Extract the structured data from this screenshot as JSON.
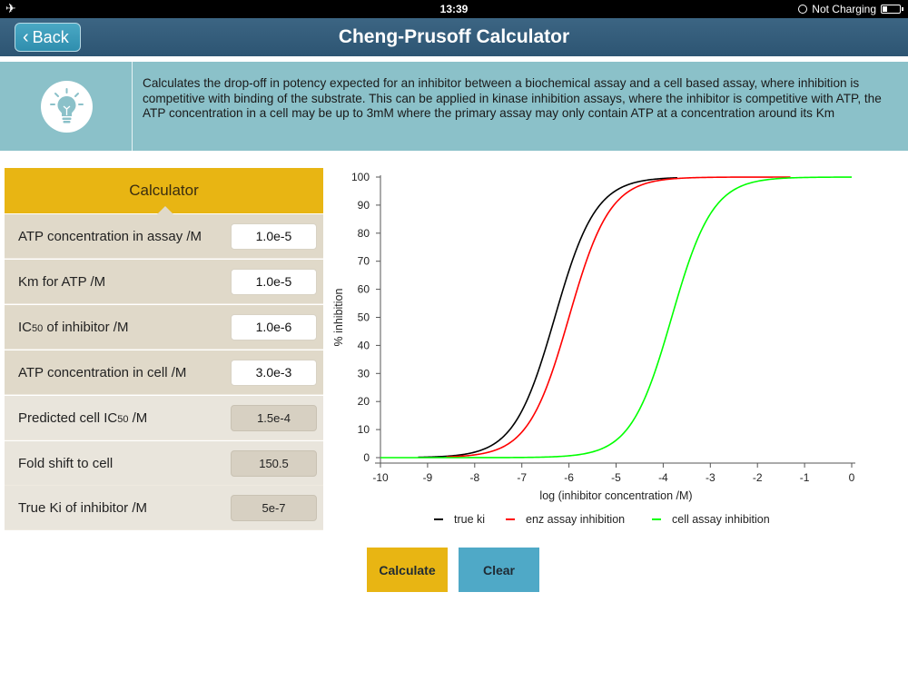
{
  "status": {
    "time": "13:39",
    "charging": "Not Charging"
  },
  "nav": {
    "back_label": "Back",
    "title": "Cheng-Prusoff Calculator"
  },
  "info": {
    "description": "Calculates the drop-off in potency expected for an inhibitor between a biochemical assay and a cell based assay, where inhibition is competitive with binding of the substrate. This can be applied in kinase inhibition assays, where the inhibitor is competitive with ATP, the ATP concentration in a cell may be up to 3mM where the primary assay may only contain ATP at a concentration around its Km"
  },
  "calculator": {
    "header": "Calculator",
    "inputs": [
      {
        "label": "ATP concentration in assay /M",
        "value": "1.0e-5"
      },
      {
        "label": "Km for ATP /M",
        "value": "1.0e-5"
      },
      {
        "label": "IC50 of inhibitor /M",
        "value": "1.0e-6"
      },
      {
        "label": "ATP concentration in cell /M",
        "value": "3.0e-3"
      }
    ],
    "outputs": [
      {
        "label": "Predicted cell IC50 /M",
        "value": "1.5e-4"
      },
      {
        "label": "Fold shift to cell",
        "value": "150.5"
      },
      {
        "label": "True Ki of inhibitor /M",
        "value": "5e-7"
      }
    ]
  },
  "buttons": {
    "calculate": "Calculate",
    "clear": "Clear"
  },
  "colors": {
    "accent_yellow": "#e8b513",
    "accent_blue": "#4fa9c7",
    "nav": "#2d5573",
    "banner": "#8bc1c9"
  },
  "chart_data": {
    "type": "line",
    "xlabel": "log (inhibitor concentration /M)",
    "ylabel": "% inhibition",
    "xlim": [
      -10,
      0
    ],
    "ylim": [
      0,
      100
    ],
    "xticks": [
      "-10",
      "-9",
      "-8",
      "-7",
      "-6",
      "-5",
      "-4",
      "-3",
      "-2",
      "-1",
      "0"
    ],
    "yticks": [
      "0",
      "10",
      "20",
      "30",
      "40",
      "50",
      "60",
      "70",
      "80",
      "90",
      "100"
    ],
    "legend_position": "bottom",
    "series": [
      {
        "name": "true ki",
        "color": "#000000",
        "log_midpoint": -6.3,
        "x_start": -9.2,
        "x_end": -3.7
      },
      {
        "name": "enz assay inhibition",
        "color": "#ff0000",
        "log_midpoint": -6.0,
        "x_start": -8.6,
        "x_end": -1.3
      },
      {
        "name": "cell assay inhibition",
        "color": "#00ff00",
        "log_midpoint": -3.82,
        "x_start": -10.0,
        "x_end": 0.0
      }
    ]
  }
}
